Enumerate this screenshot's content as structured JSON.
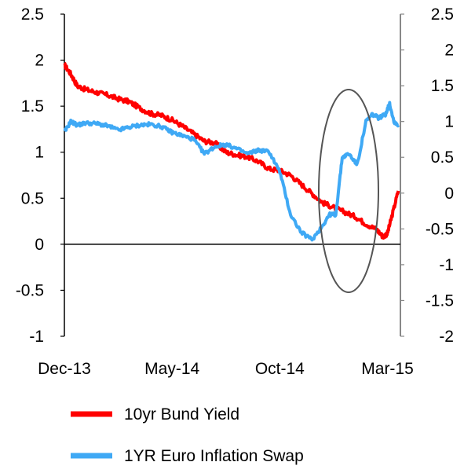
{
  "chart_data": {
    "type": "line",
    "x_tick_labels": [
      "Dec-13",
      "May-14",
      "Oct-14",
      "Mar-15"
    ],
    "y_left": {
      "ylim": [
        -1,
        2.5
      ],
      "ticks": [
        -1,
        -0.5,
        0,
        0.5,
        1,
        1.5,
        2,
        2.5
      ],
      "tick_labels": [
        "-1",
        "-0.5",
        "0",
        "0.5",
        "1",
        "1.5",
        "2",
        "2.5"
      ]
    },
    "y_right": {
      "ylim": [
        -2,
        2.5
      ],
      "ticks": [
        -2,
        -1.5,
        -1,
        -0.5,
        0,
        0.5,
        1,
        1.5,
        2,
        2.5
      ],
      "tick_labels": [
        "-2",
        "-1.5",
        "-1",
        "-0.5",
        "0",
        "0.5",
        "1",
        "1.5",
        "2",
        "2.5"
      ]
    },
    "xlim": [
      0,
      15.6
    ],
    "legend_position": "bottom",
    "annotation": "ellipse highlighting Jan-15 to Mar-15",
    "series": [
      {
        "name": "10yr Bund Yield",
        "axis": "left",
        "color": "#ff0000",
        "x": [
          0,
          0.3,
          0.6,
          1.0,
          1.5,
          2.0,
          2.5,
          3.0,
          3.5,
          4.0,
          4.5,
          5.0,
          5.5,
          6.0,
          6.5,
          7.0,
          7.5,
          8.0,
          8.5,
          9.0,
          9.5,
          10.0,
          10.5,
          11.0,
          11.5,
          12.0,
          12.5,
          13.0,
          13.5,
          14.0,
          14.5,
          14.8,
          15.0,
          15.2,
          15.5
        ],
        "y": [
          1.95,
          1.85,
          1.72,
          1.68,
          1.65,
          1.62,
          1.58,
          1.55,
          1.48,
          1.42,
          1.4,
          1.35,
          1.28,
          1.2,
          1.12,
          1.1,
          1.0,
          0.97,
          0.95,
          0.9,
          0.82,
          0.8,
          0.75,
          0.65,
          0.55,
          0.45,
          0.4,
          0.35,
          0.3,
          0.22,
          0.16,
          0.08,
          0.12,
          0.3,
          0.58
        ]
      },
      {
        "name": "1YR Euro Inflation Swap",
        "axis": "right",
        "color": "#3fa9f5",
        "x": [
          0,
          0.3,
          0.6,
          1.0,
          1.5,
          2.0,
          2.5,
          3.0,
          3.5,
          4.0,
          4.5,
          5.0,
          5.5,
          6.0,
          6.5,
          7.0,
          7.5,
          8.0,
          8.5,
          9.0,
          9.5,
          10.0,
          10.5,
          11.0,
          11.5,
          12.0,
          12.3,
          12.6,
          12.9,
          13.2,
          13.6,
          14.0,
          14.3,
          14.6,
          14.9,
          15.1,
          15.3,
          15.5
        ],
        "y": [
          0.85,
          1.0,
          0.95,
          0.98,
          0.97,
          0.94,
          0.88,
          0.92,
          0.95,
          0.96,
          0.93,
          0.85,
          0.8,
          0.75,
          0.55,
          0.65,
          0.68,
          0.62,
          0.55,
          0.6,
          0.58,
          0.3,
          -0.3,
          -0.55,
          -0.65,
          -0.45,
          -0.3,
          -0.3,
          0.5,
          0.55,
          0.4,
          1.0,
          1.1,
          1.05,
          1.1,
          1.25,
          1.0,
          0.95
        ]
      }
    ]
  }
}
